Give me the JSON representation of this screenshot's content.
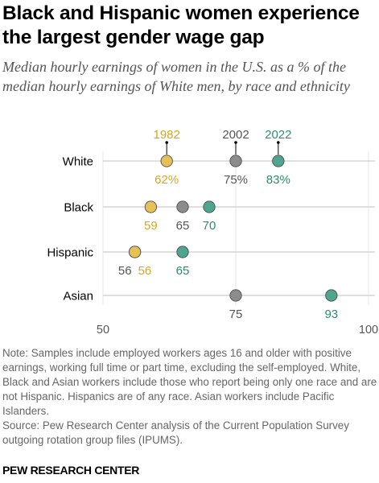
{
  "title": "Black and Hispanic women experience the largest gender wage gap",
  "subtitle": "Median hourly earnings of women in the U.S. as a % of the median hourly earnings of White men, by race and ethnicity",
  "note": "Note: Samples include employed workers ages 16 and older with positive earnings, working full time or part time, excluding the self-employed. White, Black and Asian workers include those who report being only one race and are not Hispanic. Hispanics are of any race. Asian workers include Pacific Islanders.",
  "source": "Source: Pew Research Center analysis of the Current Population Survey outgoing rotation group files (IPUMS).",
  "credit": "PEW RESEARCH CENTER",
  "colors": {
    "1982": "#E8C156",
    "2002": "#8C8C8C",
    "2022": "#4FA58F",
    "axis": "#cccccc",
    "tick_text": "#555555"
  },
  "chart_data": {
    "type": "scatter",
    "xlim": [
      50,
      100
    ],
    "xticks": [
      "50",
      "100"
    ],
    "categories": [
      "White",
      "Black",
      "Hispanic",
      "Asian"
    ],
    "series": [
      {
        "name": "1982",
        "values": [
          62,
          59,
          56,
          null
        ],
        "labels": [
          "62%",
          "59",
          "56",
          null
        ]
      },
      {
        "name": "2002",
        "values": [
          75,
          65,
          56,
          75
        ],
        "labels": [
          "75%",
          "65",
          "56",
          "75"
        ]
      },
      {
        "name": "2022",
        "values": [
          83,
          70,
          65,
          93
        ],
        "labels": [
          "83%",
          "70",
          "65",
          "93"
        ]
      }
    ]
  }
}
